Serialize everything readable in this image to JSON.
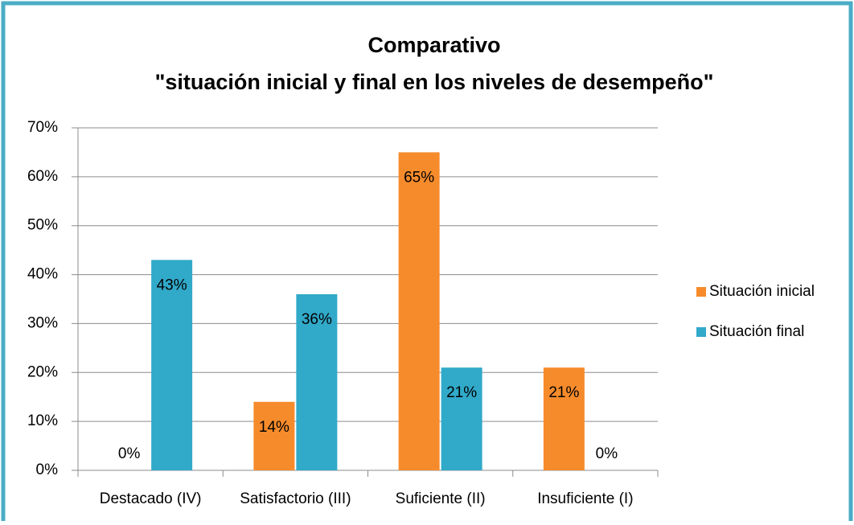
{
  "chart_data": {
    "type": "bar",
    "title": "Comparativo",
    "subtitle": "\"situación inicial y final en los niveles de desempeño\"",
    "categories": [
      "Destacado (IV)",
      "Satisfactorio (III)",
      "Suficiente (II)",
      "Insuficiente (I)"
    ],
    "series": [
      {
        "name": "Situación inicial",
        "color": "#f68b2c",
        "values": [
          0,
          14,
          65,
          21
        ],
        "value_labels": [
          "0%",
          "14%",
          "65%",
          "21%"
        ]
      },
      {
        "name": "Situación final",
        "color": "#31a9c9",
        "values": [
          43,
          36,
          21,
          0
        ],
        "value_labels": [
          "43%",
          "36%",
          "21%",
          "0%"
        ]
      }
    ],
    "ylim": [
      0,
      70
    ],
    "yticks": [
      {
        "value": 0,
        "label": "0%"
      },
      {
        "value": 10,
        "label": "10%"
      },
      {
        "value": 20,
        "label": "20%"
      },
      {
        "value": 30,
        "label": "30%"
      },
      {
        "value": 40,
        "label": "40%"
      },
      {
        "value": 50,
        "label": "50%"
      },
      {
        "value": 60,
        "label": "60%"
      },
      {
        "value": 70,
        "label": "70%"
      }
    ],
    "grid": true,
    "legend": "right"
  }
}
